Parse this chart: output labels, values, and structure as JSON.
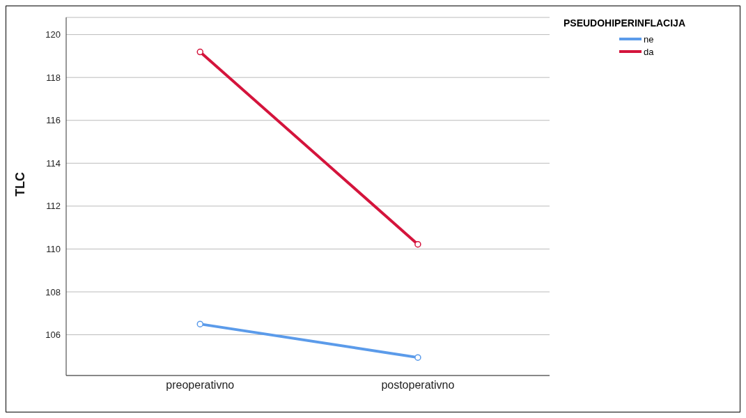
{
  "chart_data": {
    "type": "line",
    "ylabel": "TLC",
    "legend_title": "PSEUDOHIPERINFLACIJA",
    "categories": [
      "preoperativno",
      "postoperativno"
    ],
    "series": [
      {
        "name": "ne",
        "color": "#5b9bea",
        "values": [
          106.5,
          104.94
        ]
      },
      {
        "name": "da",
        "color": "#d4143c",
        "values": [
          119.19,
          110.22
        ]
      }
    ],
    "ylim": [
      104.1,
      120.8
    ],
    "yticks": [
      106,
      108,
      110,
      112,
      114,
      116,
      118,
      120
    ],
    "grid": "y",
    "legend": "top right",
    "marker": "circle",
    "line_style": "solid"
  }
}
